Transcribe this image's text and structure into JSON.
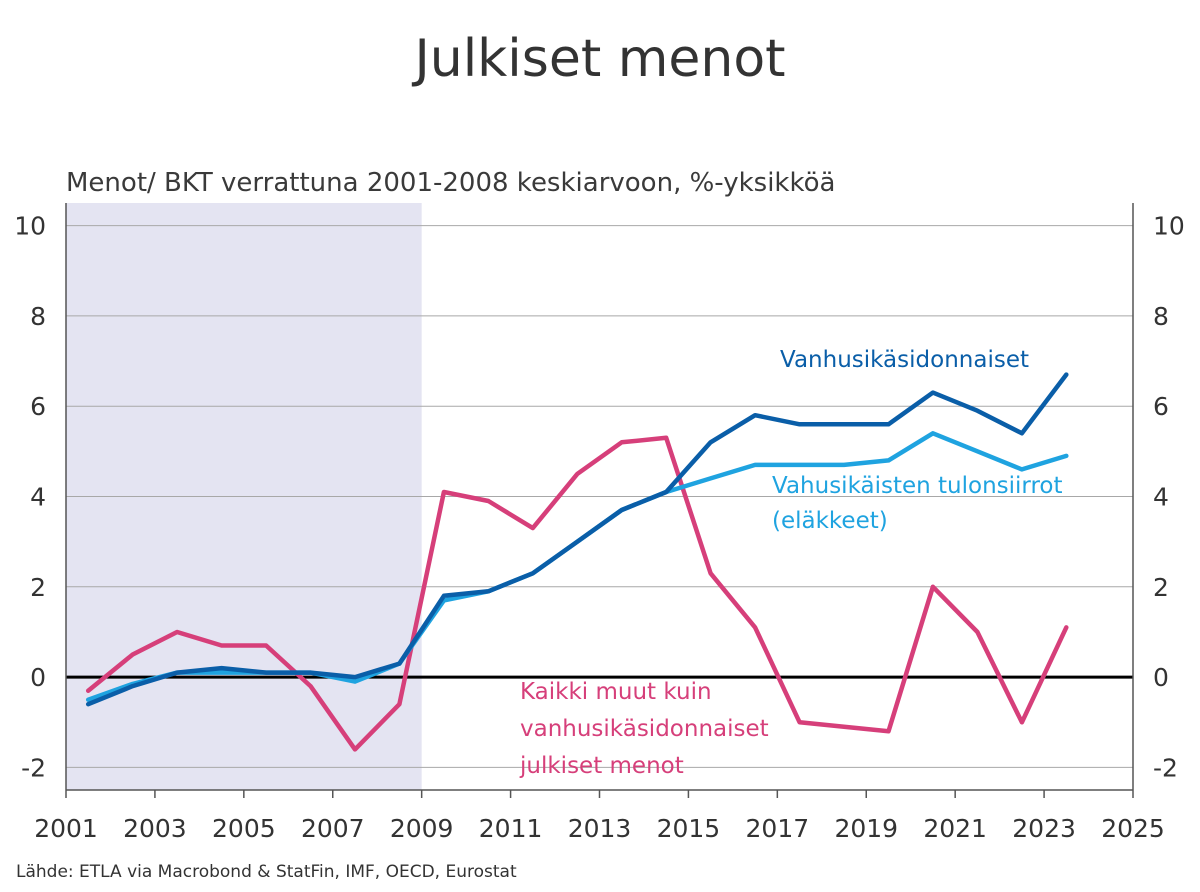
{
  "chart_data": {
    "type": "line",
    "title": "Julkiset menot",
    "subtitle": "Menot/ BKT verrattuna 2001-2008 keskiarvoon, %-yksikköä",
    "source": "Lähde: ETLA via Macrobond & StatFin, IMF, OECD, Eurostat",
    "xlim": [
      2001,
      2025
    ],
    "ylim": [
      -2.5,
      10.5
    ],
    "x_ticks": [
      "2001",
      "2003",
      "2005",
      "2007",
      "2009",
      "2011",
      "2013",
      "2015",
      "2017",
      "2019",
      "2021",
      "2023",
      "2025"
    ],
    "y_ticks": [
      "-2",
      "0",
      "2",
      "4",
      "6",
      "8",
      "10"
    ],
    "grid": true,
    "shaded_period": [
      2001,
      2009
    ],
    "x": [
      2001.5,
      2002.5,
      2003.5,
      2004.5,
      2005.5,
      2006.5,
      2007.5,
      2008.5,
      2009.5,
      2010.5,
      2011.5,
      2012.5,
      2013.5,
      2014.5,
      2015.5,
      2016.5,
      2017.5,
      2018.5,
      2019.5,
      2020.5,
      2021.5,
      2022.5,
      2023.5
    ],
    "series": [
      {
        "name": "Vanhusikäsidonnaiset",
        "color": "#0a5ea8",
        "values": [
          -0.6,
          -0.2,
          0.1,
          0.2,
          0.1,
          0.1,
          0.0,
          0.3,
          1.8,
          1.9,
          2.3,
          3.0,
          3.7,
          4.1,
          5.2,
          5.8,
          5.6,
          5.6,
          5.6,
          6.3,
          5.9,
          5.4,
          6.7
        ]
      },
      {
        "name": "Vahusikäisten tulonsiirrot (eläkkeet)",
        "label_lines": [
          "Vahusikäisten tulonsiirrot",
          "(eläkkeet)"
        ],
        "color": "#1fa3e0",
        "values": [
          -0.5,
          -0.15,
          0.1,
          0.1,
          0.1,
          0.1,
          -0.1,
          0.3,
          1.7,
          1.9,
          2.3,
          3.0,
          3.7,
          4.1,
          4.4,
          4.7,
          4.7,
          4.7,
          4.8,
          5.4,
          5.0,
          4.6,
          4.9
        ]
      },
      {
        "name": "Kaikki muut kuin vanhusikäsidonnaiset julkiset menot",
        "label_lines": [
          "Kaikki muut kuin",
          "vanhusikäsidonnaiset",
          "julkiset menot"
        ],
        "color": "#d63f7a",
        "values": [
          -0.3,
          0.5,
          1.0,
          0.7,
          0.7,
          -0.2,
          -1.6,
          -0.6,
          4.1,
          3.9,
          3.3,
          4.5,
          5.2,
          5.3,
          2.3,
          1.1,
          -1.0,
          -1.1,
          -1.2,
          2.0,
          1.0,
          -1.0,
          1.1
        ]
      }
    ]
  }
}
